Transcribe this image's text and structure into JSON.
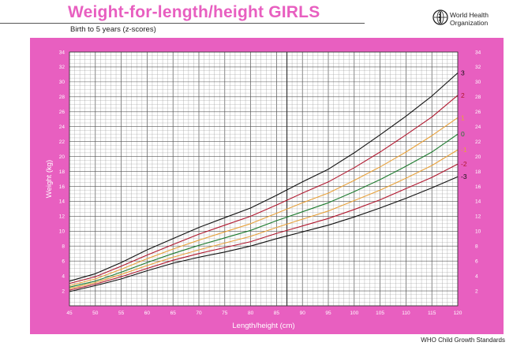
{
  "header": {
    "title": "Weight-for-length/height  GIRLS",
    "subtitle": "Birth to 5 years (z-scores)",
    "organization_line1": "World Health",
    "organization_line2": "Organization"
  },
  "footer": {
    "text": "WHO Child Growth Standards"
  },
  "colors": {
    "panel": "#e85fc0",
    "title": "#e85fc0",
    "grid": "#9a9a9a",
    "plot_bg": "#ffffff"
  },
  "chart_data": {
    "type": "line",
    "title": "",
    "xlabel": "Length/height (cm)",
    "ylabel": "Weight (kg)",
    "xlim": [
      45,
      120
    ],
    "ylim": [
      0,
      34
    ],
    "x_ticks": [
      "45",
      "50",
      "55",
      "60",
      "65",
      "70",
      "75",
      "80",
      "85",
      "90",
      "95",
      "100",
      "105",
      "110",
      "115",
      "120"
    ],
    "y_ticks": [
      "2",
      "4",
      "6",
      "8",
      "10",
      "12",
      "14",
      "16",
      "18",
      "20",
      "22",
      "24",
      "26",
      "28",
      "30",
      "32",
      "34"
    ],
    "grid": true,
    "x": [
      45,
      50,
      55,
      60,
      65,
      70,
      75,
      80,
      85,
      90,
      95,
      100,
      105,
      110,
      115,
      120
    ],
    "series": [
      {
        "label": "3",
        "color": "#111111",
        "values": [
          3.3,
          4.3,
          5.8,
          7.5,
          9.0,
          10.5,
          11.8,
          13.1,
          14.8,
          16.6,
          18.3,
          20.5,
          22.9,
          25.4,
          28.1,
          31.2
        ]
      },
      {
        "label": "2",
        "color": "#b0172e",
        "values": [
          3.0,
          3.9,
          5.3,
          6.8,
          8.2,
          9.6,
          10.8,
          12.0,
          13.5,
          15.1,
          16.6,
          18.5,
          20.6,
          22.9,
          25.3,
          28.2
        ]
      },
      {
        "label": "1",
        "color": "#e8a13a",
        "values": [
          2.7,
          3.6,
          4.9,
          6.3,
          7.6,
          8.8,
          9.9,
          11.0,
          12.4,
          13.8,
          15.1,
          16.8,
          18.6,
          20.6,
          22.8,
          25.2
        ]
      },
      {
        "label": "0",
        "color": "#1d7a2e",
        "values": [
          2.5,
          3.3,
          4.5,
          5.8,
          7.0,
          8.1,
          9.1,
          10.1,
          11.4,
          12.6,
          13.8,
          15.3,
          16.9,
          18.7,
          20.6,
          23.0
        ]
      },
      {
        "label": "-1",
        "color": "#e8a13a",
        "values": [
          2.3,
          3.1,
          4.2,
          5.4,
          6.5,
          7.5,
          8.4,
          9.3,
          10.5,
          11.6,
          12.7,
          14.1,
          15.5,
          17.1,
          18.8,
          20.9
        ]
      },
      {
        "label": "-2",
        "color": "#b0172e",
        "values": [
          2.1,
          2.9,
          3.9,
          5.0,
          6.1,
          7.0,
          7.8,
          8.6,
          9.7,
          10.7,
          11.7,
          12.9,
          14.2,
          15.7,
          17.2,
          19.0
        ]
      },
      {
        "label": "-3",
        "color": "#111111",
        "values": [
          1.9,
          2.7,
          3.6,
          4.7,
          5.7,
          6.5,
          7.2,
          8.0,
          9.0,
          9.9,
          10.8,
          11.9,
          13.1,
          14.4,
          15.8,
          17.3
        ]
      }
    ]
  }
}
